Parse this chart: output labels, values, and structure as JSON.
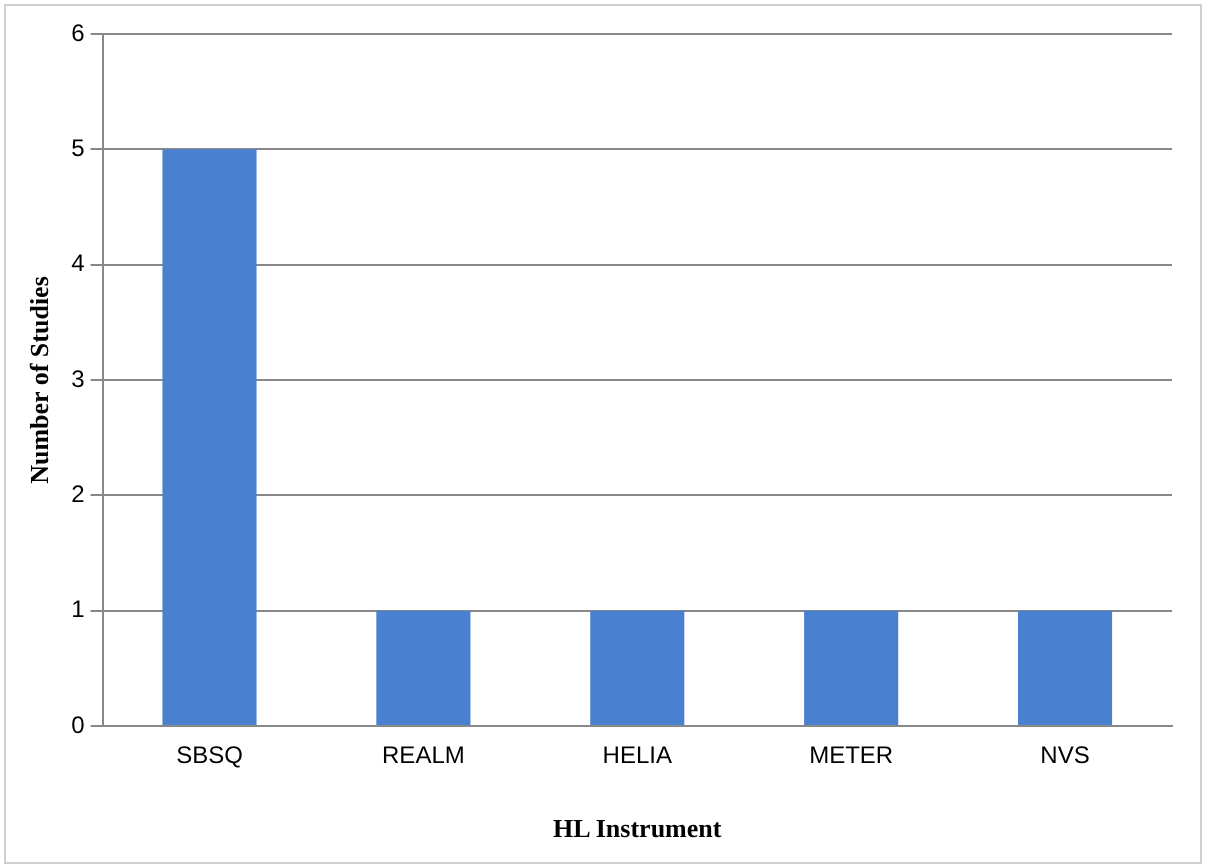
{
  "chart_data": {
    "type": "bar",
    "xlabel": "HL Instrument",
    "ylabel": "Number of Studies",
    "categories": [
      "SBSQ",
      "REALM",
      "HELIA",
      "METER",
      "NVS"
    ],
    "values": [
      5,
      1,
      1,
      1,
      1
    ],
    "color": "#4a80d0",
    "ylim": [
      0,
      6
    ],
    "yticks": [
      0,
      1,
      2,
      3,
      4,
      5,
      6
    ],
    "grid": "y",
    "legend": false
  }
}
